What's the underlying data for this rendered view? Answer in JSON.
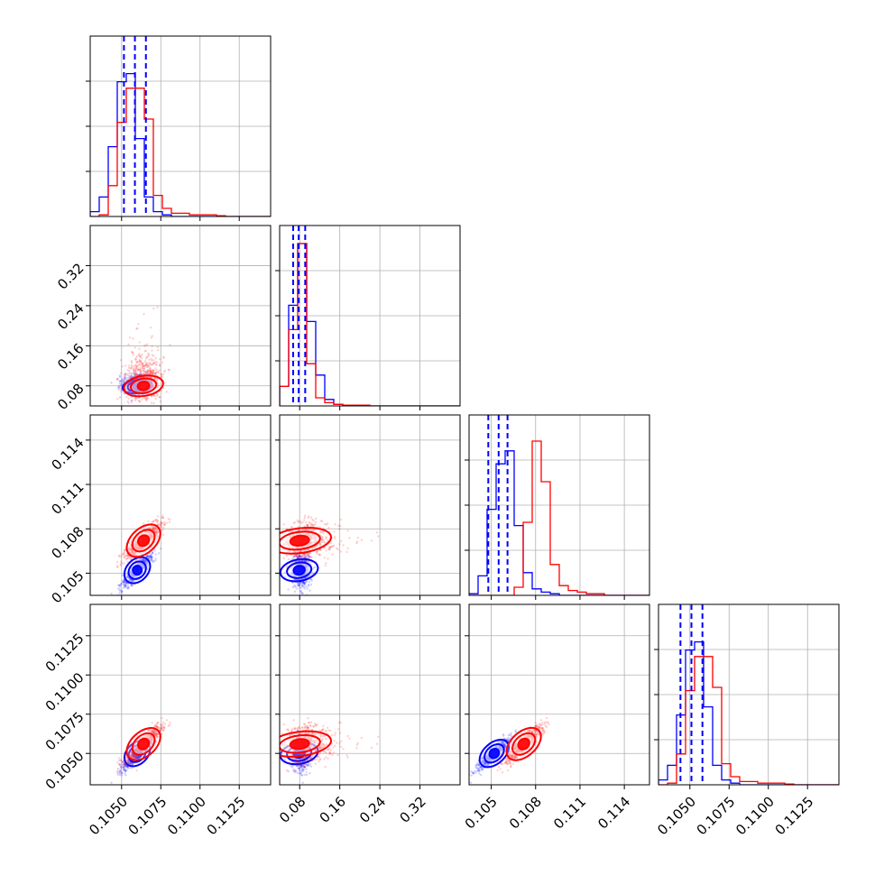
{
  "chart_data": {
    "type": "corner",
    "grid": true,
    "series": [
      {
        "name": "",
        "color": "#0000ff"
      },
      {
        "name": "",
        "color": "#ff0000"
      }
    ],
    "params": [
      {
        "range": [
          0.103,
          0.1145
        ],
        "ticks": [
          0.105,
          0.1075,
          0.11,
          0.1125
        ],
        "tick_labels": [
          "0.1050",
          "0.1075",
          "0.1100",
          "0.1125"
        ]
      },
      {
        "range": [
          0.04,
          0.4
        ],
        "ticks": [
          0.08,
          0.16,
          0.24,
          0.32
        ],
        "tick_labels": [
          "0.08",
          "0.16",
          "0.24",
          "0.32"
        ]
      },
      {
        "range": [
          0.1035,
          0.1157
        ],
        "ticks": [
          0.105,
          0.108,
          0.111,
          0.114
        ],
        "tick_labels": [
          "0.105",
          "0.108",
          "0.111",
          "0.114"
        ]
      },
      {
        "range": [
          0.103,
          0.1145
        ],
        "ticks": [
          0.105,
          0.1075,
          0.11,
          0.1125
        ],
        "tick_labels": [
          "0.1050",
          "0.1075",
          "0.1100",
          "0.1125"
        ]
      }
    ],
    "histograms": [
      {
        "param": 0,
        "blue": [
          0.03,
          0.12,
          0.43,
          0.83,
          0.88,
          0.48,
          0.12,
          0.03,
          0.01,
          0,
          0,
          0,
          0,
          0,
          0,
          0,
          0,
          0,
          0,
          0
        ],
        "red": [
          0,
          0.01,
          0.19,
          0.58,
          0.79,
          0.79,
          0.6,
          0.13,
          0.05,
          0.02,
          0.02,
          0.01,
          0.01,
          0.01,
          0.005,
          0,
          0,
          0,
          0,
          0
        ],
        "quantiles_blue": [
          0.10515,
          0.10585,
          0.10655
        ]
      },
      {
        "param": 1,
        "blue": [
          0.12,
          0.62,
          1.0,
          0.52,
          0.19,
          0.04,
          0.01,
          0.005,
          0,
          0,
          0,
          0,
          0,
          0,
          0,
          0,
          0,
          0,
          0,
          0
        ],
        "red": [
          0.12,
          0.47,
          1.0,
          0.26,
          0.05,
          0.02,
          0.01,
          0.005,
          0.005,
          0.005,
          0,
          0,
          0,
          0,
          0,
          0,
          0,
          0,
          0,
          0
        ],
        "quantiles_blue": [
          0.067,
          0.078,
          0.091
        ]
      },
      {
        "param": 2,
        "blue": [
          0.01,
          0.12,
          0.53,
          0.81,
          0.89,
          0.43,
          0.14,
          0.04,
          0.02,
          0.01,
          0,
          0,
          0,
          0,
          0,
          0,
          0,
          0,
          0,
          0
        ],
        "red": [
          0,
          0,
          0,
          0,
          0,
          0.05,
          0.45,
          0.95,
          0.7,
          0.19,
          0.06,
          0.03,
          0.02,
          0.01,
          0.01,
          0,
          0,
          0,
          0,
          0
        ],
        "quantiles_blue": [
          0.1048,
          0.1055,
          0.1061
        ]
      },
      {
        "param": 3,
        "blue": [
          0.03,
          0.12,
          0.43,
          0.83,
          0.88,
          0.48,
          0.12,
          0.03,
          0.01,
          0,
          0,
          0,
          0,
          0,
          0,
          0,
          0,
          0,
          0,
          0
        ],
        "red": [
          0,
          0.01,
          0.19,
          0.58,
          0.79,
          0.79,
          0.6,
          0.13,
          0.05,
          0.02,
          0.02,
          0.01,
          0.01,
          0.01,
          0.005,
          0,
          0,
          0,
          0,
          0
        ],
        "quantiles_blue": [
          0.1044,
          0.1051,
          0.1058
        ]
      }
    ],
    "samples": {
      "blue": {
        "center": [
          0.106,
          0.079,
          0.1052,
          0.105
        ],
        "sd": [
          0.00045,
          0.018,
          0.00055,
          0.0005
        ],
        "count": 700
      },
      "red": {
        "center": [
          0.1064,
          0.08,
          0.1072,
          0.1056
        ],
        "sd": [
          0.0006,
          0.03,
          0.00065,
          0.0006
        ],
        "count": 700
      }
    }
  }
}
